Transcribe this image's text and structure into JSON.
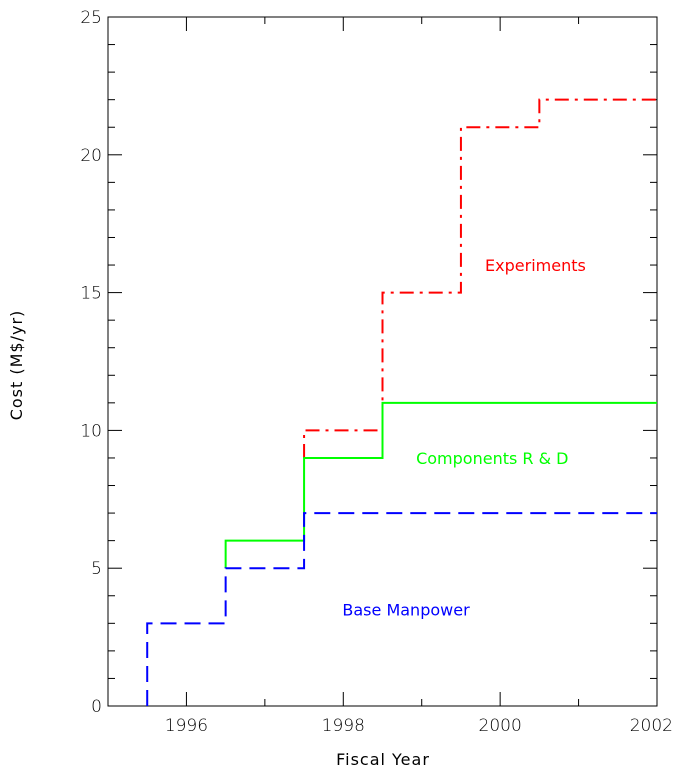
{
  "chart_data": {
    "type": "line",
    "step": true,
    "title": "",
    "xlabel": "Fiscal Year",
    "ylabel": "Cost (M$/yr)",
    "xlim": [
      1995,
      2002
    ],
    "ylim": [
      0,
      25
    ],
    "x_ticks": [
      1996,
      1998,
      2000,
      2002
    ],
    "y_ticks": [
      0,
      5,
      10,
      15,
      20,
      25
    ],
    "x_tick_labels": [
      "1996",
      "1998",
      "2000",
      "2002"
    ],
    "y_tick_labels": [
      "0",
      "5",
      "10",
      "15",
      "20",
      "25"
    ],
    "grid": false,
    "series": [
      {
        "name": "Experiments",
        "color": "#ff0000",
        "style": "dashdot",
        "x": [
          1997.5,
          1997.5,
          1998.5,
          1998.5,
          1999.5,
          1999.5,
          2000.5,
          2000.5,
          2002
        ],
        "y": [
          9,
          10,
          10,
          15,
          15,
          21,
          21,
          22,
          22
        ]
      },
      {
        "name": "Components R & D",
        "color": "#00ff00",
        "style": "solid",
        "x": [
          1996.5,
          1996.5,
          1997.5,
          1997.5,
          1998.5,
          1998.5,
          2002
        ],
        "y": [
          5,
          6,
          6,
          9,
          9,
          11,
          11
        ]
      },
      {
        "name": "Base Manpower",
        "color": "#0000ff",
        "style": "dashed",
        "x": [
          1995.5,
          1995.5,
          1996.5,
          1996.5,
          1997.5,
          1997.5,
          2002
        ],
        "y": [
          0,
          3,
          3,
          5,
          5,
          7,
          7
        ]
      }
    ],
    "annotations": [
      {
        "text": "Experiments",
        "series": 0,
        "x": 2000.45,
        "y": 16
      },
      {
        "text": "Components R & D",
        "series": 1,
        "x": 1999.9,
        "y": 9
      },
      {
        "text": "Base Manpower",
        "series": 2,
        "x": 1998.8,
        "y": 3.5
      }
    ]
  }
}
